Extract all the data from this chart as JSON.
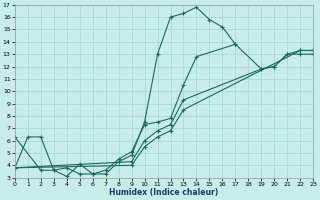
{
  "xlabel": "Humidex (Indice chaleur)",
  "bg_color": "#c8ece8",
  "grid_color": "#a8d8d4",
  "line_color": "#1a6b5a",
  "xlim": [
    0,
    23
  ],
  "ylim": [
    3,
    17
  ],
  "xticks": [
    0,
    1,
    2,
    3,
    4,
    5,
    6,
    7,
    8,
    9,
    10,
    11,
    12,
    13,
    14,
    15,
    16,
    17,
    18,
    19,
    20,
    21,
    22,
    23
  ],
  "yticks": [
    3,
    4,
    5,
    6,
    7,
    8,
    9,
    10,
    11,
    12,
    13,
    14,
    15,
    16,
    17
  ],
  "line1_x": [
    0,
    1,
    2,
    3,
    4,
    5,
    6,
    7,
    8,
    9,
    10,
    11,
    12,
    13,
    14,
    15,
    16,
    17
  ],
  "line1_y": [
    3.8,
    6.3,
    6.3,
    3.6,
    3.1,
    4.1,
    3.3,
    3.3,
    4.3,
    4.8,
    7.5,
    13.0,
    16.0,
    16.3,
    16.8,
    15.8,
    15.2,
    13.8
  ],
  "line2_x": [
    0,
    2,
    3,
    4,
    5,
    6,
    7,
    8,
    9,
    10,
    11,
    12,
    13,
    14,
    17,
    19,
    20,
    21,
    22,
    23
  ],
  "line2_y": [
    6.3,
    3.6,
    3.6,
    3.8,
    3.3,
    3.3,
    3.6,
    4.5,
    5.1,
    7.3,
    7.5,
    7.8,
    10.5,
    12.8,
    13.8,
    11.8,
    12.0,
    13.0,
    13.0,
    13.0
  ],
  "line3_x": [
    0,
    9,
    10,
    11,
    12,
    13,
    19,
    20,
    21,
    22,
    23
  ],
  "line3_y": [
    3.8,
    4.3,
    6.0,
    6.8,
    7.3,
    9.3,
    11.8,
    12.0,
    13.0,
    13.3,
    13.3
  ],
  "line4_x": [
    0,
    9,
    10,
    11,
    12,
    13,
    22,
    23
  ],
  "line4_y": [
    3.8,
    4.0,
    5.5,
    6.3,
    6.8,
    8.5,
    13.3,
    13.3
  ]
}
